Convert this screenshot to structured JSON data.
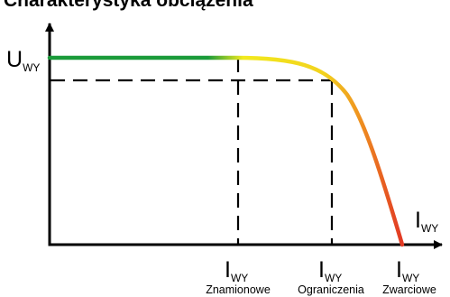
{
  "title": "Charakterystyka obciążenia",
  "y_axis": {
    "main": "U",
    "sub": "WY"
  },
  "x_axis": {
    "main": "I",
    "sub": "WY"
  },
  "ticks": [
    {
      "main": "I",
      "sub": "WY",
      "caption": "Znamionowe"
    },
    {
      "main": "I",
      "sub": "WY",
      "caption": "Ograniczenia"
    },
    {
      "main": "I",
      "sub": "WY",
      "caption": "Zwarciowe"
    }
  ],
  "colors": {
    "curve_start": "#1a9b3a",
    "curve_mid": "#f2ea1e",
    "curve_orange": "#ef9320",
    "curve_end": "#e23a24",
    "axis": "#000000"
  }
}
